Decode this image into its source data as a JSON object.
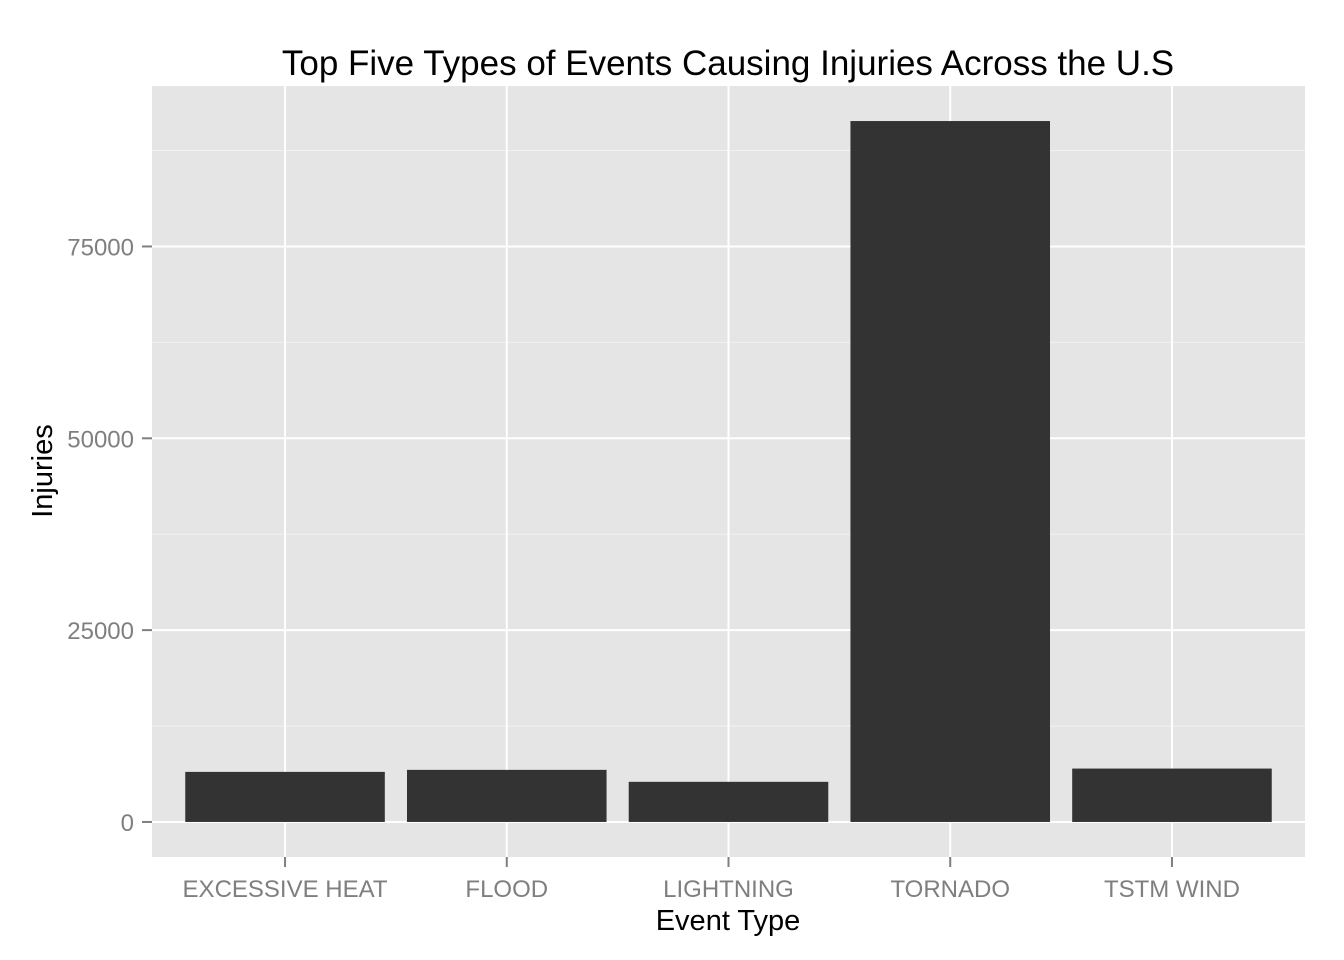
{
  "chart_data": {
    "type": "bar",
    "title": "Top Five Types of Events Causing Injuries Across the U.S",
    "xlabel": "Event Type",
    "ylabel": "Injuries",
    "categories": [
      "EXCESSIVE HEAT",
      "FLOOD",
      "LIGHTNING",
      "TORNADO",
      "TSTM WIND"
    ],
    "values": [
      6525,
      6789,
      5230,
      91346,
      6957
    ],
    "yticks": [
      0,
      25000,
      50000,
      75000
    ],
    "ytick_labels": [
      "0",
      "25000",
      "50000",
      "75000"
    ],
    "ylim": [
      -4567,
      95913
    ],
    "grid": true,
    "colors": {
      "bar": "#333333",
      "panel": "#e5e5e5",
      "grid_major": "#ffffff",
      "grid_minor": "#f2f2f2",
      "tick": "#7f7f7f"
    }
  }
}
